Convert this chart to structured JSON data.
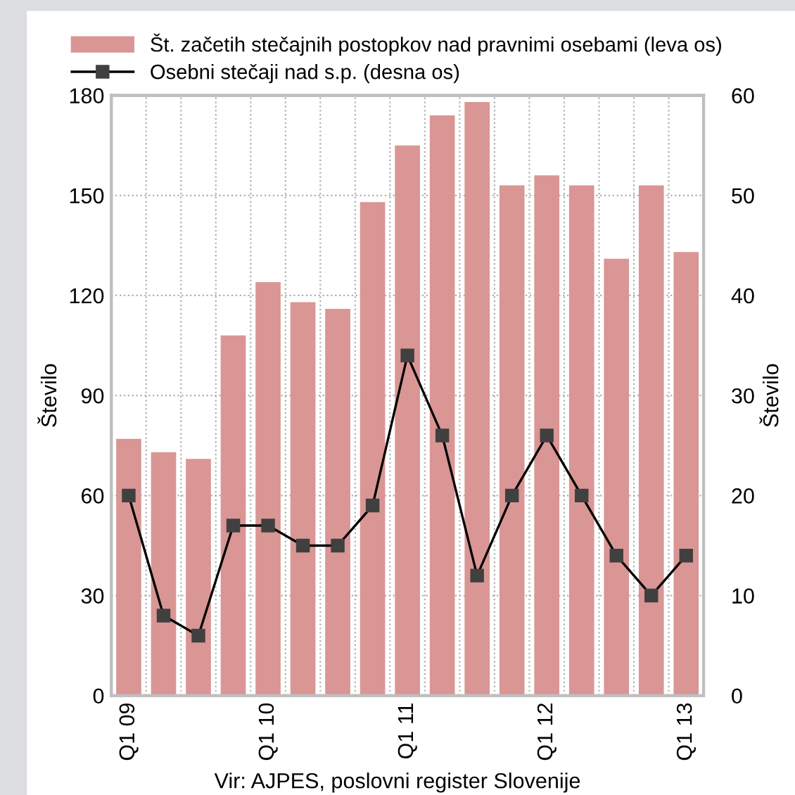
{
  "chart_data": {
    "type": "bar",
    "categories": [
      "Q1 09",
      null,
      null,
      null,
      "Q1 10",
      null,
      null,
      null,
      "Q1 11",
      null,
      null,
      null,
      "Q1 12",
      null,
      null,
      null,
      "Q1 13"
    ],
    "series": [
      {
        "name": "Št. začetih stečajnih postopkov nad pravnimi osebami (leva os)",
        "color": "#d99694",
        "values": [
          77,
          73,
          71,
          108,
          124,
          118,
          116,
          148,
          165,
          174,
          178,
          153,
          156,
          153,
          131,
          153,
          133
        ]
      },
      {
        "name": "Osebni stečaji nad s.p. (desna os)",
        "type": "line",
        "axis": "y2",
        "color": "#000000",
        "marker": "square",
        "values": [
          20,
          8,
          6,
          17,
          17,
          15,
          15,
          19,
          34,
          26,
          12,
          20,
          26,
          20,
          14,
          10,
          14
        ]
      }
    ],
    "ylabel": "Število",
    "y2label": "Število",
    "ylim": [
      0,
      180
    ],
    "yticks": [
      0,
      30,
      60,
      90,
      120,
      150,
      180
    ],
    "y2lim": [
      0,
      60
    ],
    "y2ticks": [
      0,
      10,
      20,
      30,
      40,
      50,
      60
    ],
    "grid": true,
    "legend": "top",
    "annotations": [
      "Vir: AJPES, poslovni register Slovenije"
    ]
  }
}
